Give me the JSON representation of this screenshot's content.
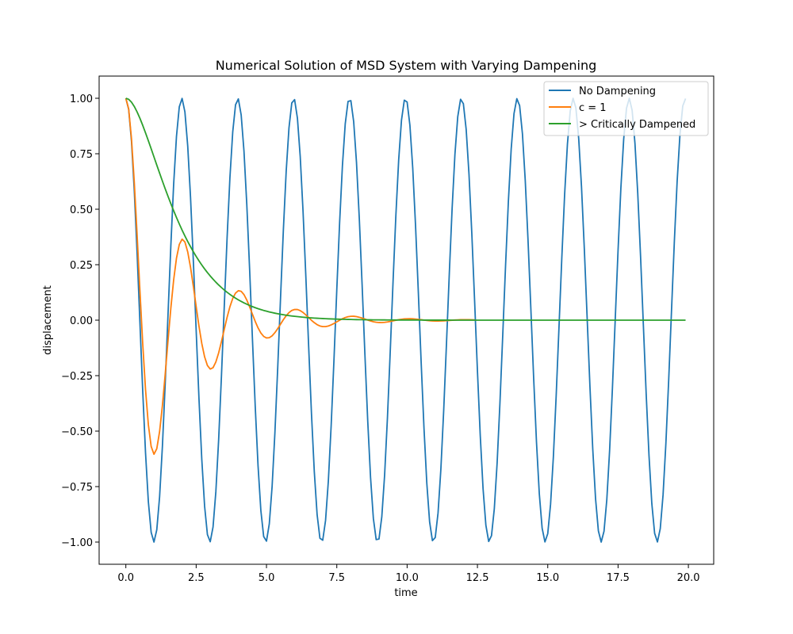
{
  "chart_data": {
    "type": "line",
    "title": "Numerical Solution of MSD System with Varying Dampening",
    "xlabel": "time",
    "ylabel": "displacement",
    "xlim": [
      -0.95,
      20.9
    ],
    "ylim": [
      -1.1,
      1.1
    ],
    "xticks": [
      0.0,
      2.5,
      5.0,
      7.5,
      10.0,
      12.5,
      15.0,
      17.5,
      20.0
    ],
    "xtick_labels": [
      "0.0",
      "2.5",
      "5.0",
      "7.5",
      "10.0",
      "12.5",
      "15.0",
      "17.5",
      "20.0"
    ],
    "yticks": [
      1.0,
      0.75,
      0.5,
      0.25,
      0.0,
      -0.25,
      -0.5,
      -0.75,
      -1.0
    ],
    "ytick_labels": [
      "1.00",
      "0.75",
      "0.50",
      "0.25",
      "0.00",
      "−0.25",
      "−0.50",
      "−0.75",
      "−1.00"
    ],
    "legend_position": "top-right",
    "grid": false,
    "sampling": {
      "t_start": 0.0,
      "t_end": 19.9,
      "dt": 0.1
    },
    "series": [
      {
        "name": "No Dampening",
        "color": "#1f77b4",
        "model": {
          "kind": "undamped",
          "omega": 3.16
        }
      },
      {
        "name": "c = 1",
        "color": "#ff7f0e",
        "model": {
          "kind": "underdamped",
          "decay": 0.5,
          "omega": 3.12,
          "t_end": 12.4
        }
      },
      {
        "name": "> Critically Dampened",
        "color": "#2ca02c",
        "model": {
          "kind": "overdamped",
          "decay": 1.0
        }
      }
    ]
  }
}
